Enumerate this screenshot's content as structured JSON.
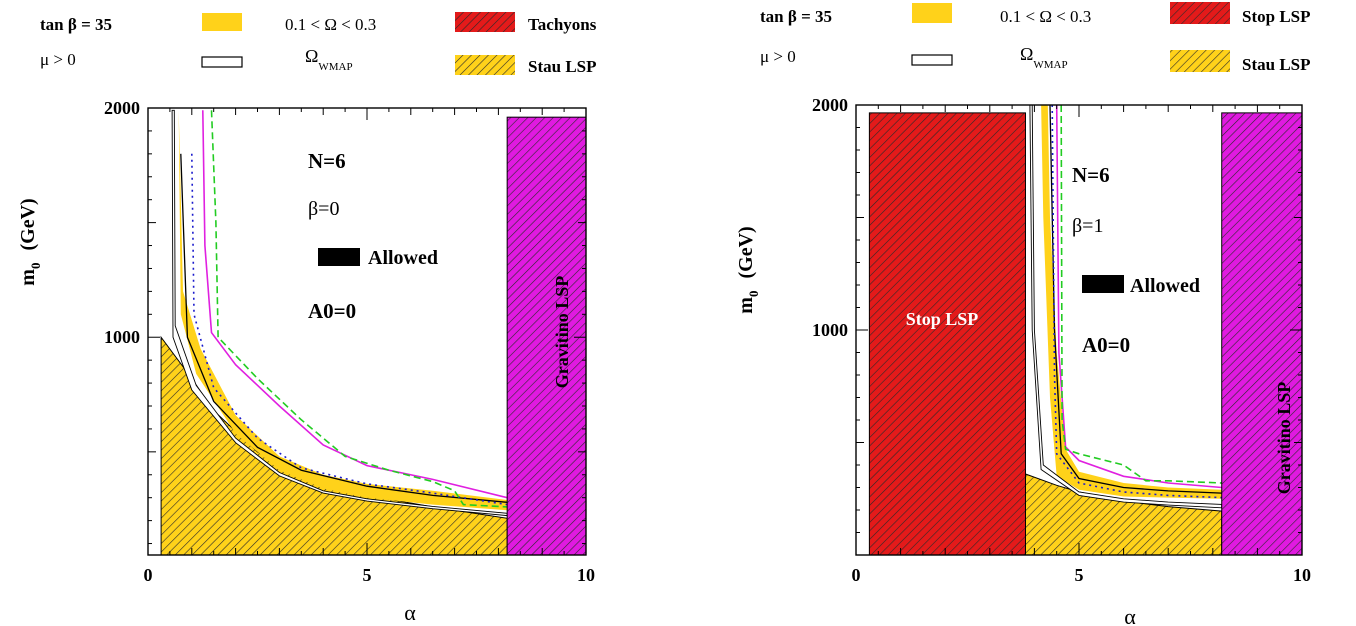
{
  "colors": {
    "gold": "#FFD21A",
    "red": "#E41A1A",
    "magenta": "#E01AE0",
    "black": "#000000",
    "hatch": "#2a2a2a",
    "pink_line": "#E020E0",
    "green_line": "#22CC22",
    "blue_line": "#1A1ACC"
  },
  "chart_data": [
    {
      "type": "area",
      "legend": {
        "tanb": "tan β = 35",
        "mu": "μ > 0",
        "omega_band": "0.1 < Ω < 0.3",
        "omega_wmap_main": "Ω",
        "omega_wmap_sub": "WMAP",
        "region1": "Tachyons",
        "region2": "Stau LSP"
      },
      "xlabel": "α",
      "ylabel_main": "m",
      "ylabel_sub": "0",
      "ylabel_unit": "(GeV)",
      "xlim": [
        0,
        10
      ],
      "ylim": [
        50,
        2000
      ],
      "xticks": [
        "0",
        "5",
        "10"
      ],
      "yticks": [
        "1000",
        "2000"
      ],
      "xtick_values": [
        0,
        5,
        10
      ],
      "ytick_values": [
        1000,
        2000
      ],
      "annotations": {
        "n": "N=6",
        "beta": "β=0",
        "allowed": "Allowed",
        "a0": "A0=0",
        "vertical_label": "Gravitino LSP"
      },
      "regions": {
        "gravitino_lsp": {
          "x": [
            8.2,
            10
          ],
          "y": [
            50,
            1960
          ]
        },
        "stau_lsp": [
          [
            0.3,
            50
          ],
          [
            0.3,
            1000
          ],
          [
            1.0,
            820
          ],
          [
            1.5,
            680
          ],
          [
            2.5,
            500
          ],
          [
            3.5,
            390
          ],
          [
            5,
            310
          ],
          [
            6.5,
            260
          ],
          [
            8.2,
            210
          ],
          [
            8.2,
            50
          ]
        ]
      },
      "series": [
        {
          "name": "0.1 < Ω < 0.3",
          "upper": [
            [
              0.7,
              1990
            ],
            [
              0.8,
              1200
            ],
            [
              1.2,
              950
            ],
            [
              2,
              660
            ],
            [
              3,
              480
            ],
            [
              4,
              400
            ],
            [
              5,
              360
            ],
            [
              6.5,
              330
            ],
            [
              8.2,
              290
            ]
          ],
          "lower": [
            [
              0.7,
              1990
            ],
            [
              0.75,
              1100
            ],
            [
              1.1,
              840
            ],
            [
              2,
              580
            ],
            [
              3,
              420
            ],
            [
              4,
              340
            ],
            [
              5,
              300
            ],
            [
              6.5,
              270
            ],
            [
              8.2,
              245
            ]
          ]
        },
        {
          "name": "Ω_WMAP",
          "upper": [
            [
              0.6,
              1990
            ],
            [
              0.62,
              1050
            ],
            [
              1.1,
              790
            ],
            [
              2,
              560
            ],
            [
              3,
              410
            ],
            [
              4,
              330
            ],
            [
              5,
              295
            ],
            [
              6.5,
              262
            ],
            [
              8.2,
              232
            ]
          ],
          "lower": [
            [
              0.55,
              1990
            ],
            [
              0.57,
              1000
            ],
            [
              1.0,
              770
            ],
            [
              2,
              540
            ],
            [
              3,
              395
            ],
            [
              4,
              320
            ],
            [
              5,
              285
            ],
            [
              6.5,
              252
            ],
            [
              8.2,
              222
            ]
          ]
        },
        {
          "name": "black contour",
          "points": [
            [
              0.75,
              1800
            ],
            [
              0.9,
              1000
            ],
            [
              1.5,
              720
            ],
            [
              2.5,
              520
            ],
            [
              3.5,
              420
            ],
            [
              5,
              350
            ],
            [
              6.5,
              310
            ],
            [
              8.2,
              280
            ]
          ]
        },
        {
          "name": "dotted blue",
          "points": [
            [
              1.0,
              1800
            ],
            [
              1.05,
              1100
            ],
            [
              1.5,
              780
            ],
            [
              2.5,
              560
            ],
            [
              3.5,
              430
            ],
            [
              5,
              360
            ],
            [
              6.5,
              320
            ],
            [
              8.2,
              270
            ],
            [
              10,
              240
            ]
          ]
        },
        {
          "name": "magenta",
          "points": [
            [
              1.25,
              1990
            ],
            [
              1.3,
              1400
            ],
            [
              1.45,
              1020
            ],
            [
              2,
              880
            ],
            [
              3,
              700
            ],
            [
              4,
              530
            ],
            [
              5,
              440
            ],
            [
              6.5,
              380
            ],
            [
              8.2,
              300
            ],
            [
              10,
              270
            ]
          ]
        },
        {
          "name": "green dashed",
          "points": [
            [
              1.45,
              1990
            ],
            [
              1.55,
              1500
            ],
            [
              1.6,
              1000
            ],
            [
              2,
              920
            ],
            [
              2.5,
              820
            ],
            [
              3.5,
              640
            ],
            [
              4.5,
              480
            ],
            [
              5.5,
              420
            ],
            [
              6.5,
              370
            ],
            [
              7,
              330
            ],
            [
              7.2,
              270
            ],
            [
              8.2,
              260
            ],
            [
              10,
              240
            ]
          ]
        }
      ]
    },
    {
      "type": "area",
      "legend": {
        "tanb": "tan β = 35",
        "mu": "μ > 0",
        "omega_band": "0.1 < Ω < 0.3",
        "omega_wmap_main": "Ω",
        "omega_wmap_sub": "WMAP",
        "region1": "Stop LSP",
        "region2": "Stau LSP"
      },
      "xlabel": "α",
      "ylabel_main": "m",
      "ylabel_sub": "0",
      "ylabel_unit": "(GeV)",
      "xlim": [
        0,
        10
      ],
      "ylim": [
        0,
        2000
      ],
      "xticks": [
        "0",
        "5",
        "10"
      ],
      "yticks": [
        "1000",
        "2000"
      ],
      "xtick_values": [
        0,
        5,
        10
      ],
      "ytick_values": [
        1000,
        2000
      ],
      "annotations": {
        "n": "N=6",
        "beta": "β=1",
        "allowed": "Allowed",
        "a0": "A0=0",
        "vertical_label": "Gravitino LSP",
        "stop_label": "Stop LSP"
      },
      "regions": {
        "stop_lsp": {
          "x": [
            0.3,
            3.8
          ],
          "y": [
            0,
            1965
          ]
        },
        "gravitino_lsp": {
          "x": [
            8.2,
            10
          ],
          "y": [
            0,
            1965
          ]
        },
        "stau_lsp": [
          [
            3.8,
            0
          ],
          [
            3.8,
            360
          ],
          [
            4.5,
            310
          ],
          [
            5,
            280
          ],
          [
            6,
            240
          ],
          [
            7,
            215
          ],
          [
            8.2,
            195
          ],
          [
            8.2,
            0
          ]
        ]
      },
      "series": [
        {
          "name": "0.1 < Ω < 0.3",
          "upper": [
            [
              4.3,
              2000
            ],
            [
              4.35,
              1500
            ],
            [
              4.5,
              900
            ],
            [
              4.7,
              470
            ],
            [
              5,
              370
            ],
            [
              6,
              320
            ],
            [
              7,
              300
            ],
            [
              8.2,
              290
            ]
          ],
          "lower": [
            [
              4.15,
              2000
            ],
            [
              4.2,
              1500
            ],
            [
              4.35,
              700
            ],
            [
              4.5,
              350
            ],
            [
              5,
              290
            ],
            [
              6,
              260
            ],
            [
              7,
              255
            ],
            [
              8.2,
              250
            ]
          ]
        },
        {
          "name": "Ω_WMAP",
          "upper": [
            [
              3.95,
              2000
            ],
            [
              4.0,
              1000
            ],
            [
              4.2,
              400
            ],
            [
              5,
              280
            ],
            [
              6,
              250
            ],
            [
              7,
              235
            ],
            [
              8.2,
              225
            ]
          ],
          "lower": [
            [
              3.9,
              2000
            ],
            [
              3.95,
              1000
            ],
            [
              4.15,
              380
            ],
            [
              5,
              265
            ],
            [
              6,
              235
            ],
            [
              7,
              222
            ],
            [
              8.2,
              210
            ]
          ]
        },
        {
          "name": "black contour",
          "points": [
            [
              4.35,
              2000
            ],
            [
              4.45,
              1000
            ],
            [
              4.6,
              450
            ],
            [
              5,
              340
            ],
            [
              6,
              300
            ],
            [
              7,
              285
            ],
            [
              8.2,
              275
            ]
          ]
        },
        {
          "name": "dotted blue",
          "points": [
            [
              4.4,
              2000
            ],
            [
              4.45,
              800
            ],
            [
              4.5,
              450
            ],
            [
              5,
              320
            ],
            [
              6,
              280
            ],
            [
              7,
              265
            ],
            [
              8.2,
              255
            ],
            [
              10,
              250
            ]
          ]
        },
        {
          "name": "magenta",
          "points": [
            [
              4.5,
              2000
            ],
            [
              4.55,
              900
            ],
            [
              4.7,
              480
            ],
            [
              5,
              420
            ],
            [
              6,
              350
            ],
            [
              7,
              320
            ],
            [
              8.2,
              300
            ],
            [
              10,
              290
            ]
          ]
        },
        {
          "name": "green dashed",
          "points": [
            [
              4.6,
              2000
            ],
            [
              4.62,
              600
            ],
            [
              4.7,
              470
            ],
            [
              5,
              450
            ],
            [
              6,
              400
            ],
            [
              6.5,
              330
            ],
            [
              7,
              330
            ],
            [
              8.2,
              320
            ],
            [
              10,
              280
            ]
          ]
        }
      ]
    }
  ]
}
